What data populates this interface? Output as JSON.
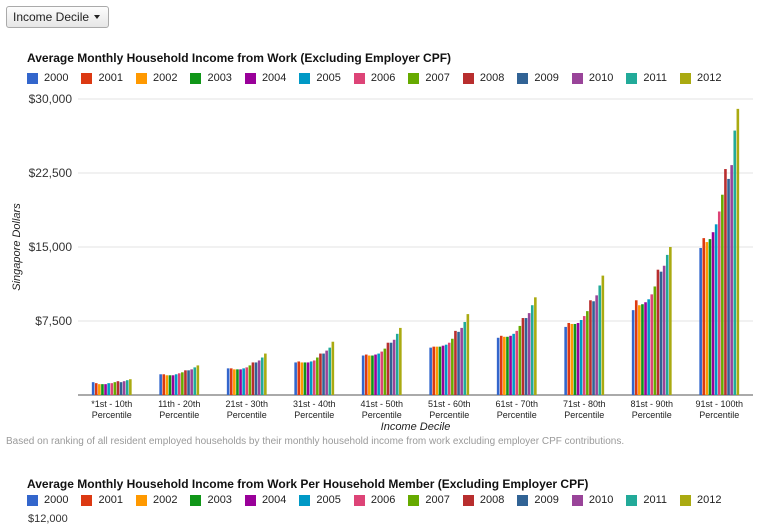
{
  "dropdown": {
    "label": "Income Decile"
  },
  "colors": [
    "#3366cc",
    "#dc3912",
    "#ff9900",
    "#109618",
    "#990099",
    "#0099c6",
    "#dd4477",
    "#66aa00",
    "#b82e2e",
    "#316395",
    "#994499",
    "#22aa99",
    "#aaaa11"
  ],
  "caption": "Based on ranking of all resident employed households by their monthly household income from work excluding employer CPF contributions.",
  "chart_data": [
    {
      "type": "bar",
      "title": "Average Monthly Household Income from Work (Excluding Employer CPF)",
      "xlabel": "Income Decile",
      "ylabel": "Singapore Dollars",
      "ylim": [
        0,
        30000
      ],
      "yticks": [
        "$30,000",
        "$22,500",
        "$15,000",
        "$7,500"
      ],
      "ytick_values": [
        30000,
        22500,
        15000,
        7500
      ],
      "categories": [
        {
          "line1": "*1st - 10th",
          "line2": "Percentile"
        },
        {
          "line1": "11th - 20th",
          "line2": "Percentile"
        },
        {
          "line1": "21st - 30th",
          "line2": "Percentile"
        },
        {
          "line1": "31st - 40th",
          "line2": "Percentile"
        },
        {
          "line1": "41st - 50th",
          "line2": "Percentile"
        },
        {
          "line1": "51st - 60th",
          "line2": "Percentile"
        },
        {
          "line1": "61st - 70th",
          "line2": "Percentile"
        },
        {
          "line1": "71st - 80th",
          "line2": "Percentile"
        },
        {
          "line1": "81st - 90th",
          "line2": "Percentile"
        },
        {
          "line1": "91st - 100th",
          "line2": "Percentile"
        }
      ],
      "series": [
        {
          "name": "2000",
          "values": [
            1300,
            2100,
            2700,
            3300,
            4000,
            4800,
            5800,
            6900,
            8600,
            14900
          ]
        },
        {
          "name": "2001",
          "values": [
            1200,
            2100,
            2700,
            3400,
            4100,
            4900,
            6000,
            7300,
            9600,
            15900
          ]
        },
        {
          "name": "2002",
          "values": [
            1100,
            2000,
            2600,
            3300,
            4000,
            4900,
            5900,
            7200,
            9100,
            15500
          ]
        },
        {
          "name": "2003",
          "values": [
            1100,
            2000,
            2600,
            3300,
            4000,
            4900,
            5900,
            7200,
            9200,
            15800
          ]
        },
        {
          "name": "2004",
          "values": [
            1100,
            2000,
            2600,
            3300,
            4100,
            5000,
            6000,
            7300,
            9400,
            16500
          ]
        },
        {
          "name": "2005",
          "values": [
            1200,
            2100,
            2700,
            3400,
            4200,
            5100,
            6200,
            7600,
            9700,
            17300
          ]
        },
        {
          "name": "2006",
          "values": [
            1200,
            2200,
            2800,
            3500,
            4400,
            5300,
            6500,
            8000,
            10200,
            18600
          ]
        },
        {
          "name": "2007",
          "values": [
            1300,
            2300,
            3000,
            3800,
            4700,
            5700,
            7000,
            8500,
            11000,
            20300
          ]
        },
        {
          "name": "2008",
          "values": [
            1400,
            2500,
            3300,
            4200,
            5300,
            6500,
            7800,
            9600,
            12700,
            22900
          ]
        },
        {
          "name": "2009",
          "values": [
            1300,
            2500,
            3300,
            4200,
            5300,
            6400,
            7800,
            9500,
            12500,
            21900
          ]
        },
        {
          "name": "2010",
          "values": [
            1400,
            2600,
            3500,
            4500,
            5600,
            6800,
            8300,
            10100,
            13100,
            23300
          ]
        },
        {
          "name": "2011",
          "values": [
            1500,
            2800,
            3800,
            4800,
            6200,
            7400,
            9100,
            11100,
            14200,
            26800
          ]
        },
        {
          "name": "2012",
          "values": [
            1600,
            3000,
            4200,
            5400,
            6800,
            8200,
            9900,
            12100,
            15000,
            29000
          ]
        }
      ]
    },
    {
      "type": "bar",
      "title": "Average Monthly Household Income from Work Per Household Member (Excluding Employer CPF)",
      "series_names": [
        "2000",
        "2001",
        "2002",
        "2003",
        "2004",
        "2005",
        "2006",
        "2007",
        "2008",
        "2009",
        "2010",
        "2011",
        "2012"
      ],
      "yticks": [
        "$12,000"
      ]
    }
  ]
}
